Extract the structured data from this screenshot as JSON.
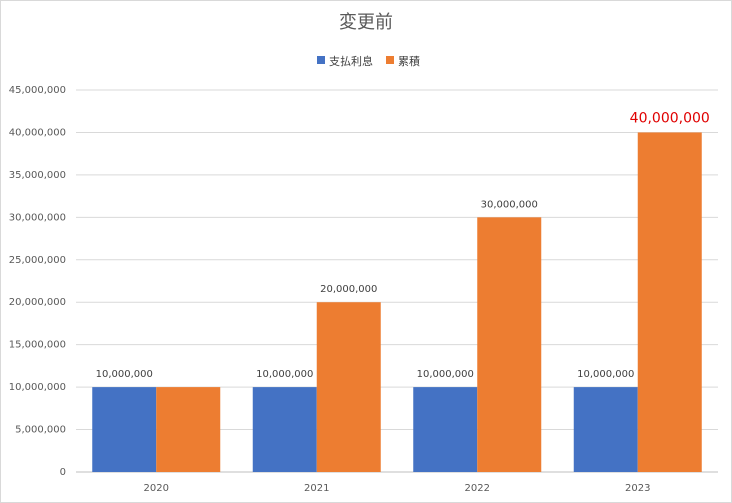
{
  "chart_data": {
    "type": "bar",
    "title": "変更前",
    "categories": [
      "2020",
      "2021",
      "2022",
      "2023"
    ],
    "series": [
      {
        "name": "支払利息",
        "color": "#4472c4",
        "values": [
          10000000,
          10000000,
          10000000,
          10000000
        ],
        "labels": [
          "10,000,000",
          "10,000,000",
          "10,000,000",
          "10,000,000"
        ]
      },
      {
        "name": "累積",
        "color": "#ed7d31",
        "values": [
          10000000,
          20000000,
          30000000,
          40000000
        ],
        "labels": [
          "",
          "20,000,000",
          "30,000,000",
          "40,000,000"
        ],
        "highlight_last_label_color": "#e00000"
      }
    ],
    "y_ticks": [
      0,
      5000000,
      10000000,
      15000000,
      20000000,
      25000000,
      30000000,
      35000000,
      40000000,
      45000000
    ],
    "y_tick_labels": [
      "0",
      "5,000,000",
      "10,000,000",
      "15,000,000",
      "20,000,000",
      "25,000,000",
      "30,000,000",
      "35,000,000",
      "40,000,000",
      "45,000,000"
    ],
    "ylim": [
      0,
      45000000
    ],
    "grid": true,
    "legend_position": "top"
  }
}
